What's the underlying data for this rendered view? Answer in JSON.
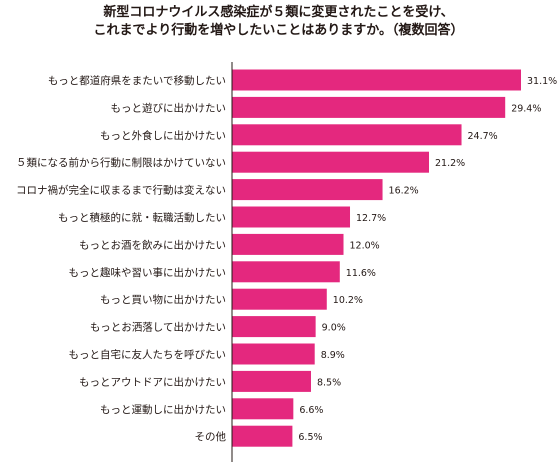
{
  "chart_data": {
    "type": "bar",
    "orientation": "horizontal",
    "title_lines": [
      "新型コロナウイルス感染症が５類に変更されたことを受け、",
      "これまでより行動を増やしたいことはありますか。（複数回答）"
    ],
    "categories": [
      "もっと都道府県をまたいで移動したい",
      "もっと遊びに出かけたい",
      "もっと外食しに出かけたい",
      "５類になる前から行動に制限はかけていない",
      "コロナ禍が完全に収まるまで行動は変えない",
      "もっと積極的に就・転職活動したい",
      "もっとお酒を飲みに出かけたい",
      "もっと趣味や習い事に出かけたい",
      "もっと買い物に出かけたい",
      "もっとお洒落して出かけたい",
      "もっと自宅に友人たちを呼びたい",
      "もっとアウトドアに出かけたい",
      "もっと運動しに出かけたい",
      "その他"
    ],
    "values": [
      31.1,
      29.4,
      24.7,
      21.2,
      16.2,
      12.7,
      12.0,
      11.6,
      10.2,
      9.0,
      8.9,
      8.5,
      6.6,
      6.5
    ],
    "value_labels": [
      "31.1%",
      "29.4%",
      "24.7%",
      "21.2%",
      "16.2%",
      "12.7%",
      "12.0%",
      "11.6%",
      "10.2%",
      "9.0%",
      "8.9%",
      "8.5%",
      "6.6%",
      "6.5%"
    ],
    "unit": "%",
    "xlim": [
      0,
      31.1
    ],
    "grid": false,
    "bar_color": "#e4287e"
  }
}
